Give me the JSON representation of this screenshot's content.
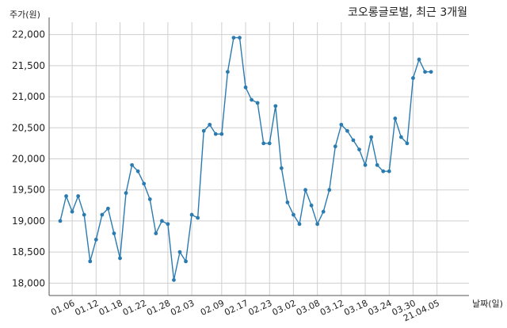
{
  "chart_data": {
    "type": "line",
    "title": "코오롱글로벌, 최근 3개월",
    "ylabel": "주가(원)",
    "xlabel": "날짜(일)",
    "ylim": [
      17800,
      22200
    ],
    "yticks": [
      18000,
      18500,
      19000,
      19500,
      20000,
      20500,
      21000,
      21500,
      22000
    ],
    "ytick_labels": [
      "18,000",
      "18,500",
      "19,000",
      "19,500",
      "20,000",
      "20,500",
      "21,000",
      "21,500",
      "22,000"
    ],
    "xtick_labels": [
      "01.06",
      "01.12",
      "01.18",
      "01.22",
      "01.28",
      "02.03",
      "02.09",
      "02.17",
      "02.23",
      "03.02",
      "03.08",
      "03.12",
      "03.18",
      "03.24",
      "03.30",
      "21.04.05"
    ],
    "xtick_indices": [
      2,
      6,
      10,
      14,
      18,
      22,
      27,
      31,
      35,
      39,
      43,
      47,
      51,
      55,
      59,
      63
    ],
    "grid": true,
    "color": "#2a7bb0",
    "series": [
      {
        "name": "",
        "values": [
          19000,
          19400,
          19150,
          19400,
          19100,
          18350,
          18700,
          19100,
          19200,
          18800,
          18400,
          19450,
          19900,
          19800,
          19600,
          19350,
          18800,
          19000,
          18950,
          18050,
          18500,
          18350,
          19100,
          19050,
          20450,
          20550,
          20400,
          20400,
          21400,
          21950,
          21950,
          21150,
          20950,
          20900,
          20250,
          20250,
          20850,
          19850,
          19300,
          19100,
          18950,
          19500,
          19250,
          18950,
          19150,
          19500,
          20200,
          20550,
          20450,
          20300,
          20150,
          19900,
          20350,
          19900,
          19800,
          19800,
          20650,
          20350,
          20250,
          21300,
          21600,
          21400,
          21400
        ]
      }
    ]
  }
}
